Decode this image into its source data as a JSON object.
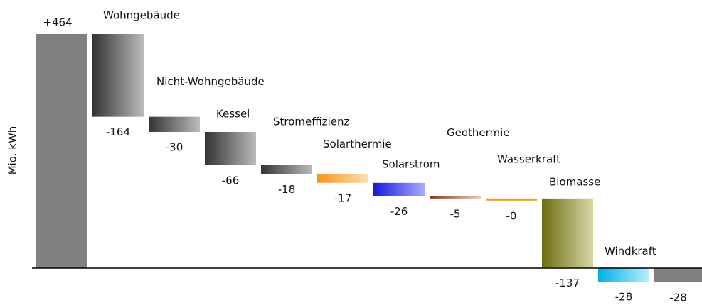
{
  "chart_data": {
    "type": "waterfall",
    "ylabel": "Mio. kWh",
    "categories": [
      null,
      "Wohngebäude",
      "Nicht-Wohngebäude",
      "Kessel",
      "Stromeffizienz",
      "Solarthermie",
      "Solarstrom",
      "Geothermie",
      "Wasserkraft",
      "Biomasse",
      "Windkraft",
      null
    ],
    "values": [
      464,
      -164,
      -30,
      -66,
      -18,
      -17,
      -26,
      -5,
      0,
      -137,
      -28,
      -28
    ],
    "value_labels": [
      "+464",
      "-164",
      "-30",
      "-66",
      "-18",
      "-17",
      "-26",
      "-5",
      "-0",
      "-137",
      "-28",
      "-28"
    ],
    "totals": [
      true,
      false,
      false,
      false,
      false,
      false,
      false,
      false,
      false,
      false,
      false,
      true
    ],
    "colors": [
      [
        "#808080",
        "#808080"
      ],
      [
        "#333333",
        "#bbbbbb"
      ],
      [
        "#333333",
        "#bbbbbb"
      ],
      [
        "#333333",
        "#bbbbbb"
      ],
      [
        "#333333",
        "#bbbbbb"
      ],
      [
        "#f7941d",
        "#fde0b0"
      ],
      [
        "#1a1ad8",
        "#aaaaff"
      ],
      [
        "#8b3a1a",
        "#e6c8b8"
      ],
      [
        "#f0a020",
        "#f0a020"
      ],
      [
        "#6e6e10",
        "#d8d8a8"
      ],
      [
        "#00b0e8",
        "#b8f0fa"
      ],
      [
        "#808080",
        "#808080"
      ]
    ]
  }
}
